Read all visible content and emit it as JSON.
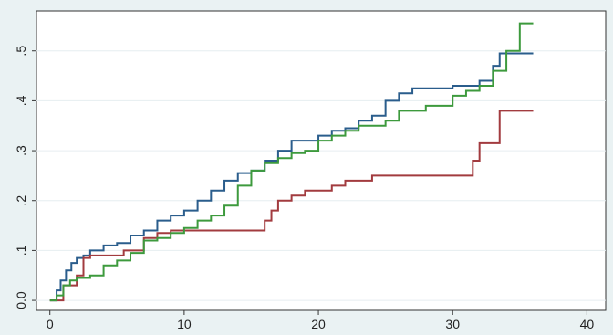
{
  "chart_data": {
    "type": "step",
    "xlim": [
      -1,
      41.4
    ],
    "ylim": [
      -0.02,
      0.58
    ],
    "xticks": [
      0,
      10,
      20,
      30,
      40
    ],
    "yticks": [
      {
        "value": 0,
        "label": "0.0"
      },
      {
        "value": 0.1,
        "label": ".1"
      },
      {
        "value": 0.2,
        "label": ".2"
      },
      {
        "value": 0.3,
        "label": ".3"
      },
      {
        "value": 0.4,
        "label": ".4"
      },
      {
        "value": 0.5,
        "label": ".5"
      }
    ],
    "grid": true,
    "series": [
      {
        "color": "#2a5d8c",
        "x": [
          0,
          0.5,
          0.8,
          1.2,
          1.6,
          2,
          2.5,
          3,
          4,
          5,
          6,
          7,
          8,
          9,
          10,
          11,
          12,
          13,
          14,
          15,
          16,
          17,
          18,
          20,
          21,
          22,
          23,
          24,
          25,
          26,
          27,
          30,
          32,
          33,
          33.5,
          36
        ],
        "values": [
          0,
          0.02,
          0.04,
          0.06,
          0.075,
          0.085,
          0.09,
          0.1,
          0.11,
          0.115,
          0.13,
          0.14,
          0.16,
          0.17,
          0.18,
          0.2,
          0.22,
          0.24,
          0.255,
          0.26,
          0.28,
          0.3,
          0.32,
          0.33,
          0.34,
          0.345,
          0.36,
          0.37,
          0.4,
          0.415,
          0.425,
          0.43,
          0.44,
          0.47,
          0.495,
          0.495
        ]
      },
      {
        "color": "#a23b3f",
        "x": [
          0,
          1,
          2,
          2.5,
          3,
          5,
          5.5,
          7,
          8,
          9,
          15,
          16,
          16.5,
          17,
          18,
          19,
          21,
          22,
          24,
          31.5,
          32,
          33.5,
          36
        ],
        "values": [
          0,
          0.03,
          0.05,
          0.085,
          0.09,
          0.09,
          0.1,
          0.125,
          0.135,
          0.14,
          0.14,
          0.16,
          0.18,
          0.2,
          0.21,
          0.22,
          0.23,
          0.24,
          0.25,
          0.28,
          0.315,
          0.38,
          0.38
        ]
      },
      {
        "color": "#3d9a3d",
        "x": [
          0,
          0.5,
          1,
          1.5,
          2,
          3,
          4,
          5,
          6,
          7,
          8,
          9,
          10,
          11,
          12,
          13,
          14,
          15,
          16,
          17,
          18,
          19,
          20,
          21,
          22,
          23,
          25,
          26,
          28,
          30,
          31,
          32,
          33,
          34,
          35,
          36
        ],
        "values": [
          0,
          0.01,
          0.03,
          0.04,
          0.045,
          0.05,
          0.07,
          0.08,
          0.095,
          0.12,
          0.125,
          0.135,
          0.145,
          0.16,
          0.17,
          0.19,
          0.23,
          0.26,
          0.275,
          0.285,
          0.295,
          0.3,
          0.32,
          0.33,
          0.34,
          0.35,
          0.36,
          0.38,
          0.39,
          0.41,
          0.42,
          0.43,
          0.46,
          0.5,
          0.555,
          0.555
        ]
      }
    ]
  }
}
